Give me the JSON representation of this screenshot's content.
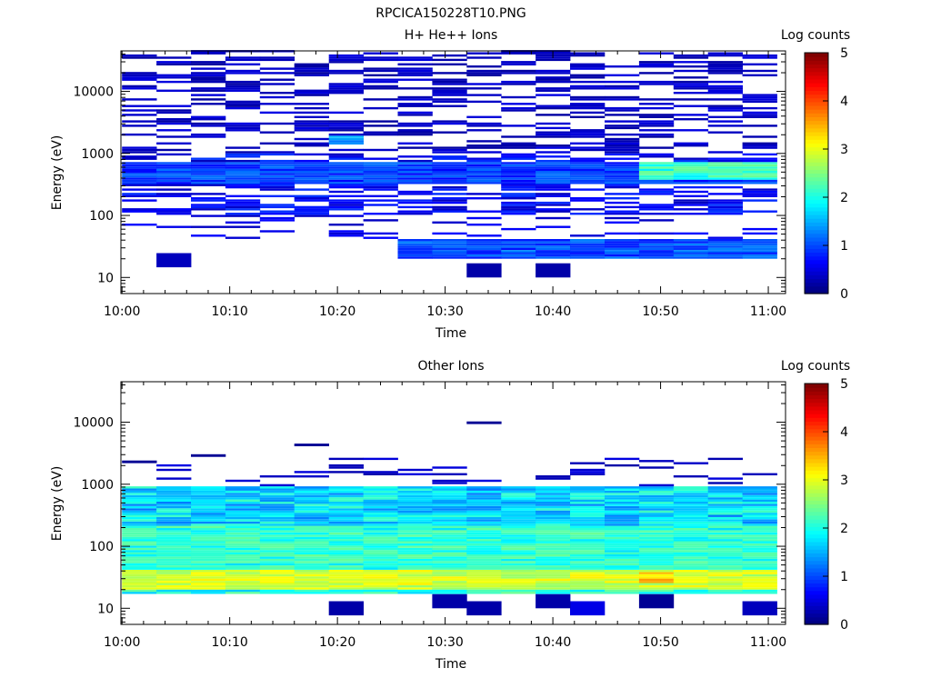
{
  "figure": {
    "title": "RPCICA150228T10.PNG"
  },
  "chart_data": [
    {
      "type": "heatmap",
      "title": "H+ He++ Ions",
      "xlabel": "Time",
      "ylabel": "Energy (eV)",
      "x_ticks": [
        "10:00",
        "10:10",
        "10:20",
        "10:30",
        "10:40",
        "10:50",
        "11:00"
      ],
      "x_range": [
        "09:59.9",
        "11:01.6"
      ],
      "y_scale": "log",
      "y_ticks": [
        "10",
        "100",
        "1000",
        "10000"
      ],
      "y_range": [
        5.5,
        45000
      ],
      "colorbar": {
        "label": "Log counts",
        "ticks": [
          "0",
          "1",
          "2",
          "3",
          "4",
          "5"
        ],
        "range": [
          0,
          5
        ],
        "colormap": "jet"
      },
      "time_columns_min": [
        0,
        3.2,
        6.4,
        9.6,
        12.8,
        16.0,
        19.2,
        22.4,
        25.6,
        28.8,
        32.0,
        35.2,
        38.4,
        41.6,
        44.8,
        48.0,
        51.2,
        54.4,
        57.6
      ],
      "notable_bands": [
        {
          "energy_eV": [
            20,
            40
          ],
          "time_min": [
            25,
            60
          ],
          "log_counts": 1.0
        },
        {
          "energy_eV": [
            300,
            700
          ],
          "time_min": [
            0,
            60
          ],
          "log_counts": 0.9
        },
        {
          "energy_eV": [
            350,
            700
          ],
          "time_min": [
            48,
            60
          ],
          "log_counts": 2.1
        },
        {
          "energy_eV": [
            1300,
            1900
          ],
          "time_min": [
            19,
            22
          ],
          "log_counts": 1.4
        }
      ],
      "sparse_counts_eV_range": [
        1000,
        45000
      ],
      "isolated_low_energy_bins": [
        {
          "energy_eV": 13,
          "time_min": 32,
          "log_counts": 0.2
        },
        {
          "energy_eV": 13,
          "time_min": 38.5,
          "log_counts": 0.2
        },
        {
          "energy_eV": 19,
          "time_min": 3,
          "log_counts": 0.3
        }
      ]
    },
    {
      "type": "heatmap",
      "title": "Other Ions",
      "xlabel": "Time",
      "ylabel": "Energy (eV)",
      "x_ticks": [
        "10:00",
        "10:10",
        "10:20",
        "10:30",
        "10:40",
        "10:50",
        "11:00"
      ],
      "x_range": [
        "09:59.9",
        "11:01.6"
      ],
      "y_scale": "log",
      "y_ticks": [
        "10",
        "100",
        "1000",
        "10000"
      ],
      "y_range": [
        5.5,
        45000
      ],
      "colorbar": {
        "label": "Log counts",
        "ticks": [
          "0",
          "1",
          "2",
          "3",
          "4",
          "5"
        ],
        "range": [
          0,
          5
        ],
        "colormap": "jet"
      },
      "time_columns_min": [
        0,
        3.2,
        6.4,
        9.6,
        12.8,
        16.0,
        19.2,
        22.4,
        25.6,
        28.8,
        32.0,
        35.2,
        38.4,
        41.6,
        44.8,
        48.0,
        51.2,
        54.4,
        57.6
      ],
      "notable_bands": [
        {
          "energy_eV": [
            20,
            40
          ],
          "time_min": [
            0,
            60
          ],
          "log_counts": 2.9
        },
        {
          "energy_eV": [
            25,
            38
          ],
          "time_min": [
            48,
            51
          ],
          "log_counts": 3.4
        },
        {
          "energy_eV": [
            40,
            200
          ],
          "time_min": [
            0,
            60
          ],
          "log_counts": 2.0
        },
        {
          "energy_eV": [
            200,
            900
          ],
          "time_min": [
            0,
            60
          ],
          "log_counts": 1.5
        },
        {
          "energy_eV": [
            17,
            20
          ],
          "time_min": [
            0,
            60
          ],
          "log_counts": 1.0
        }
      ],
      "isolated_high_energy_bins": [
        {
          "energy_eV": 9800,
          "time_min": 33.5,
          "log_counts": 0.1
        },
        {
          "energy_eV": 4300,
          "time_min": 17.5,
          "log_counts": 0.1
        },
        {
          "energy_eV": 2900,
          "time_min": 8,
          "log_counts": 0.1
        },
        {
          "energy_eV": 2300,
          "time_min": 1.5,
          "log_counts": 0.1
        }
      ],
      "isolated_low_energy_bins": [
        {
          "energy_eV": 10,
          "time_min": 19.5,
          "log_counts": 0.2
        },
        {
          "energy_eV": 10,
          "time_min": 33.5,
          "log_counts": 0.2
        },
        {
          "energy_eV": 10,
          "time_min": 43,
          "log_counts": 0.5
        },
        {
          "energy_eV": 10,
          "time_min": 57.6,
          "log_counts": 0.3
        },
        {
          "energy_eV": 13,
          "time_min": 30,
          "log_counts": 0.2
        },
        {
          "energy_eV": 13,
          "time_min": 38.5,
          "log_counts": 0.2
        },
        {
          "energy_eV": 13,
          "time_min": 48,
          "log_counts": 0.1
        }
      ]
    }
  ]
}
